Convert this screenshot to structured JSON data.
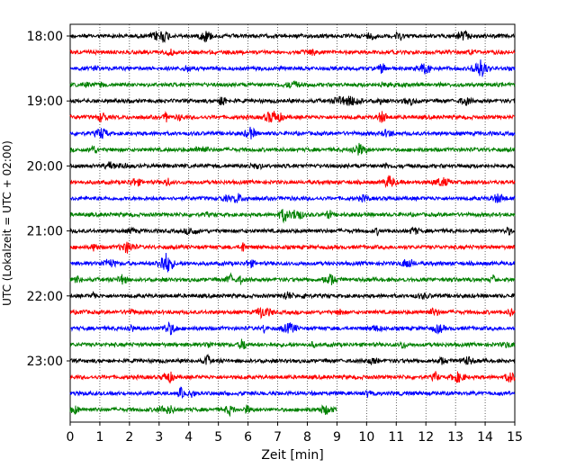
{
  "chart_data": {
    "type": "line",
    "title": "",
    "xlabel": "Zeit  [min]",
    "ylabel": "UTC (Lokalzeit = UTC + 02:00)",
    "xlim": [
      0,
      15
    ],
    "x_ticks": [
      0,
      1,
      2,
      3,
      4,
      5,
      6,
      7,
      8,
      9,
      10,
      11,
      12,
      13,
      14,
      15
    ],
    "grid_x": "dotted",
    "trace_interval_min": 15,
    "y_tick_labels": [
      "18:00",
      "19:00",
      "20:00",
      "21:00",
      "22:00",
      "23:00"
    ],
    "line_colors": [
      "#000000",
      "#ff0000",
      "#0000ff",
      "#008000"
    ],
    "traces": [
      {
        "start": "18:00",
        "end_min": 15
      },
      {
        "start": "18:15",
        "end_min": 15
      },
      {
        "start": "18:30",
        "end_min": 15
      },
      {
        "start": "18:45",
        "end_min": 15
      },
      {
        "start": "19:00",
        "end_min": 15
      },
      {
        "start": "19:15",
        "end_min": 15
      },
      {
        "start": "19:30",
        "end_min": 15
      },
      {
        "start": "19:45",
        "end_min": 15
      },
      {
        "start": "20:00",
        "end_min": 15
      },
      {
        "start": "20:15",
        "end_min": 15
      },
      {
        "start": "20:30",
        "end_min": 15
      },
      {
        "start": "20:45",
        "end_min": 15
      },
      {
        "start": "21:00",
        "end_min": 15
      },
      {
        "start": "21:15",
        "end_min": 15
      },
      {
        "start": "21:30",
        "end_min": 15
      },
      {
        "start": "21:45",
        "end_min": 15
      },
      {
        "start": "22:00",
        "end_min": 15
      },
      {
        "start": "22:15",
        "end_min": 15
      },
      {
        "start": "22:30",
        "end_min": 15
      },
      {
        "start": "22:45",
        "end_min": 15
      },
      {
        "start": "23:00",
        "end_min": 15
      },
      {
        "start": "23:15",
        "end_min": 15
      },
      {
        "start": "23:30",
        "end_min": 15
      },
      {
        "start": "23:45",
        "end_min": 9
      }
    ]
  }
}
